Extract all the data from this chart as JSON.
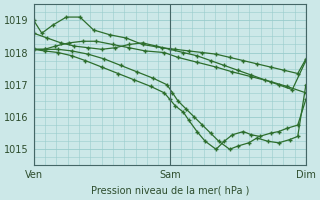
{
  "background_color": "#cce8e8",
  "plot_bg_color": "#cce8e8",
  "line_color": "#2d6e2d",
  "marker_color": "#2d6e2d",
  "grid_color": "#99cccc",
  "ylabel_ticks": [
    1015,
    1016,
    1017,
    1018,
    1019
  ],
  "xtick_labels": [
    "Ven",
    "Sam",
    "Dim"
  ],
  "xtick_positions": [
    0.0,
    0.5,
    1.0
  ],
  "xlabel": "Pression niveau de la mer( hPa )",
  "ylim": [
    1014.5,
    1019.5
  ],
  "xlim": [
    0.0,
    1.0
  ],
  "series": [
    {
      "x": [
        0.0,
        0.03,
        0.07,
        0.12,
        0.17,
        0.22,
        0.28,
        0.34,
        0.4,
        0.47,
        0.52,
        0.57,
        0.62,
        0.67,
        0.72,
        0.77,
        0.82,
        0.87,
        0.92,
        0.97,
        1.0
      ],
      "y": [
        1019.0,
        1018.6,
        1018.85,
        1019.1,
        1019.1,
        1018.7,
        1018.55,
        1018.45,
        1018.25,
        1018.15,
        1018.1,
        1018.05,
        1018.0,
        1017.95,
        1017.85,
        1017.75,
        1017.65,
        1017.55,
        1017.45,
        1017.35,
        1017.8
      ]
    },
    {
      "x": [
        0.0,
        0.04,
        0.08,
        0.13,
        0.18,
        0.23,
        0.29,
        0.35,
        0.41,
        0.48,
        0.53,
        0.6,
        0.67,
        0.73,
        0.8,
        0.87,
        0.93,
        1.0
      ],
      "y": [
        1018.1,
        1018.1,
        1018.2,
        1018.3,
        1018.35,
        1018.35,
        1018.25,
        1018.15,
        1018.05,
        1018.0,
        1017.85,
        1017.7,
        1017.55,
        1017.4,
        1017.25,
        1017.1,
        1016.95,
        1016.75
      ]
    },
    {
      "x": [
        0.0,
        0.04,
        0.09,
        0.14,
        0.19,
        0.25,
        0.31,
        0.37,
        0.43,
        0.48,
        0.5,
        0.52,
        0.55,
        0.57,
        0.6,
        0.63,
        0.67,
        0.7,
        0.73,
        0.77,
        0.8,
        0.83,
        0.87,
        0.9,
        0.93,
        0.97,
        1.0
      ],
      "y": [
        1018.1,
        1018.05,
        1018.0,
        1017.9,
        1017.75,
        1017.55,
        1017.35,
        1017.15,
        1016.95,
        1016.75,
        1016.55,
        1016.35,
        1016.15,
        1015.9,
        1015.55,
        1015.25,
        1015.0,
        1015.25,
        1015.45,
        1015.55,
        1015.45,
        1015.4,
        1015.5,
        1015.55,
        1015.65,
        1015.75,
        1016.55
      ]
    },
    {
      "x": [
        0.0,
        0.04,
        0.09,
        0.14,
        0.2,
        0.26,
        0.32,
        0.38,
        0.44,
        0.49,
        0.51,
        0.53,
        0.56,
        0.59,
        0.62,
        0.65,
        0.68,
        0.72,
        0.75,
        0.79,
        0.82,
        0.86,
        0.9,
        0.94,
        0.97,
        1.0
      ],
      "y": [
        1018.1,
        1018.1,
        1018.1,
        1018.05,
        1017.95,
        1017.8,
        1017.6,
        1017.4,
        1017.2,
        1017.0,
        1016.75,
        1016.5,
        1016.25,
        1016.0,
        1015.75,
        1015.5,
        1015.25,
        1015.0,
        1015.1,
        1015.2,
        1015.35,
        1015.25,
        1015.2,
        1015.3,
        1015.4,
        1017.0
      ]
    },
    {
      "x": [
        0.0,
        0.05,
        0.1,
        0.15,
        0.2,
        0.25,
        0.3,
        0.35,
        0.4,
        0.45,
        0.5,
        0.55,
        0.6,
        0.65,
        0.7,
        0.75,
        0.8,
        0.85,
        0.9,
        0.95,
        1.0
      ],
      "y": [
        1018.6,
        1018.45,
        1018.3,
        1018.2,
        1018.15,
        1018.1,
        1018.15,
        1018.25,
        1018.3,
        1018.2,
        1018.1,
        1018.0,
        1017.9,
        1017.75,
        1017.6,
        1017.45,
        1017.3,
        1017.15,
        1017.0,
        1016.85,
        1017.75
      ]
    }
  ],
  "vlines": [
    0.0,
    0.5,
    1.0
  ]
}
